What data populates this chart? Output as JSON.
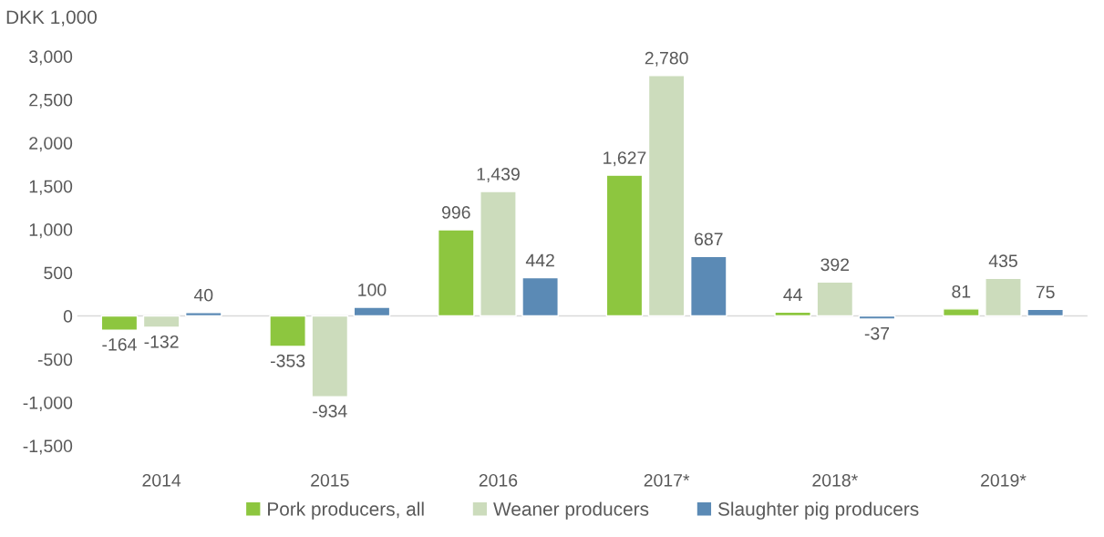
{
  "chart_data": {
    "type": "bar",
    "ylabel": "DKK 1,000",
    "categories": [
      "2014",
      "2015",
      "2016",
      "2017*",
      "2018*",
      "2019*"
    ],
    "series": [
      {
        "name": "Pork producers, all",
        "color": "#8dc63f",
        "values": [
          -164,
          -353,
          996,
          1627,
          44,
          81
        ],
        "value_labels": [
          "-164",
          "-353",
          "996",
          "1,627",
          "44",
          "81"
        ]
      },
      {
        "name": "Weaner producers",
        "color": "#ccdcbc",
        "values": [
          -132,
          -934,
          1439,
          2780,
          392,
          435
        ],
        "value_labels": [
          "-132",
          "-934",
          "1,439",
          "2,780",
          "392",
          "435"
        ]
      },
      {
        "name": "Slaughter pig producers",
        "color": "#5b8ab5",
        "values": [
          40,
          100,
          442,
          687,
          -37,
          75
        ],
        "value_labels": [
          "40",
          "100",
          "442",
          "687",
          "-37",
          "75"
        ]
      }
    ],
    "ylim": [
      -1500,
      3000
    ],
    "yticks": [
      {
        "value": -1500,
        "label": "-1,500"
      },
      {
        "value": -1000,
        "label": "-1,000"
      },
      {
        "value": -500,
        "label": "-500"
      },
      0,
      500,
      {
        "value": 1000,
        "label": "1,000"
      },
      {
        "value": 1500,
        "label": "1,500"
      },
      {
        "value": 2000,
        "label": "2,000"
      },
      {
        "value": 2500,
        "label": "2,500"
      },
      {
        "value": 3000,
        "label": "3,000"
      }
    ],
    "ref_lines": [
      {
        "axis": "y",
        "value": 0,
        "color": "#d9d9d9"
      }
    ],
    "grid": false,
    "legend": "bottom"
  }
}
